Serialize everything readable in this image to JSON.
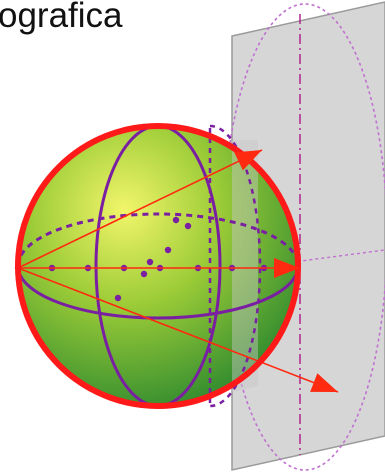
{
  "caption": "ografica",
  "colors": {
    "sphere_light": "#f2f56a",
    "sphere_mid": "#9ccc37",
    "sphere_dark": "#2f8a2f",
    "sphere_outline": "#ff1a1a",
    "meridian": "#7a1fa2",
    "projection_ray": "#ff2a10",
    "plane_fill": "#c8c8c8",
    "plane_edge": "#9a9a9a",
    "projected_circle": "#c070d0",
    "plane_axis": "#b01888"
  },
  "icons": [
    "sphere-shape",
    "projection-plane-shape",
    "arrow-head-shape"
  ]
}
